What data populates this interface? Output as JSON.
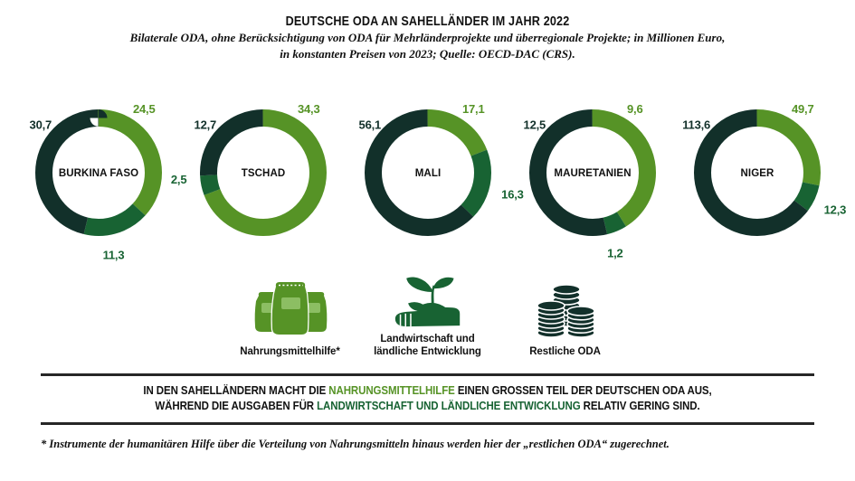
{
  "header": {
    "title": "DEUTSCHE ODA AN SAHELLÄNDER IM JAHR 2022",
    "subtitle_line1": "Bilaterale ODA, ohne Berücksichtigung von ODA für Mehrländerprojekte und überregionale Projekte; in Millionen Euro,",
    "subtitle_line2": "in konstanten Preisen von 2023; Quelle: OECD-DAC (CRS)."
  },
  "chart_data": {
    "type": "pie",
    "variant": "donut-small-multiples",
    "title": "Deutsche ODA an Sahelländer im Jahr 2022",
    "unit": "Millionen Euro, in konstanten Preisen von 2023",
    "source": "OECD-DAC (CRS)",
    "categories": [
      "Nahrungsmittelhilfe",
      "Landwirtschaft und ländliche Entwicklung",
      "Restliche ODA"
    ],
    "colors": {
      "food": "#569326",
      "agriculture": "#186333",
      "rest": "#12302A"
    },
    "segment_start": "top, clockwise: food, agriculture, rest",
    "countries": [
      {
        "name": "BURKINA FASO",
        "values": {
          "food": 24.5,
          "agriculture": 11.3,
          "rest": 30.7
        },
        "display": {
          "food": "24,5",
          "agriculture": "11,3",
          "rest": "30,7"
        }
      },
      {
        "name": "TSCHAD",
        "values": {
          "food": 34.3,
          "agriculture": 2.5,
          "rest": 12.7
        },
        "display": {
          "food": "34,3",
          "agriculture": "2,5",
          "rest": "12,7"
        }
      },
      {
        "name": "MALI",
        "values": {
          "food": 17.1,
          "agriculture": 16.3,
          "rest": 56.1
        },
        "display": {
          "food": "17,1",
          "agriculture": "16,3",
          "rest": "56,1"
        }
      },
      {
        "name": "MAURETANIEN",
        "values": {
          "food": 9.6,
          "agriculture": 1.2,
          "rest": 12.5
        },
        "display": {
          "food": "9,6",
          "agriculture": "1,2",
          "rest": "12,5"
        }
      },
      {
        "name": "NIGER",
        "values": {
          "food": 49.7,
          "agriculture": 12.3,
          "rest": 113.6
        },
        "display": {
          "food": "49,7",
          "agriculture": "12,3",
          "rest": "113,6"
        }
      }
    ]
  },
  "legend": {
    "items": [
      {
        "icon": "grain-sacks-icon",
        "label": "Nahrungsmittelhilfe*",
        "color": "#569326"
      },
      {
        "icon": "hand-seedling-icon",
        "label_line1": "Landwirtschaft und",
        "label_line2": "ländliche Entwicklung",
        "color": "#186333"
      },
      {
        "icon": "coin-stacks-icon",
        "label": "Restliche ODA",
        "color": "#12302A"
      }
    ]
  },
  "summary": {
    "line1": [
      {
        "text": "IN DEN SAHELLÄNDERN MACHT DIE ",
        "color": "#111111"
      },
      {
        "text": "NAHRUNGSMITTELHILFE",
        "color": "#569326"
      },
      {
        "text": " EINEN GROSSEN TEIL DER DEUTSCHEN ODA AUS,",
        "color": "#111111"
      }
    ],
    "line2": [
      {
        "text": "WÄHREND DIE AUSGABEN FÜR ",
        "color": "#111111"
      },
      {
        "text": "LANDWIRTSCHAFT UND LÄNDLICHE ENTWICKLUNG",
        "color": "#186333"
      },
      {
        "text": " RELATIV GERING SIND.",
        "color": "#111111"
      }
    ]
  },
  "footnote": "* Instrumente der humanitären Hilfe über die Verteilung von Nahrungsmitteln hinaus werden hier der „restlichen ODA“ zugerechnet."
}
